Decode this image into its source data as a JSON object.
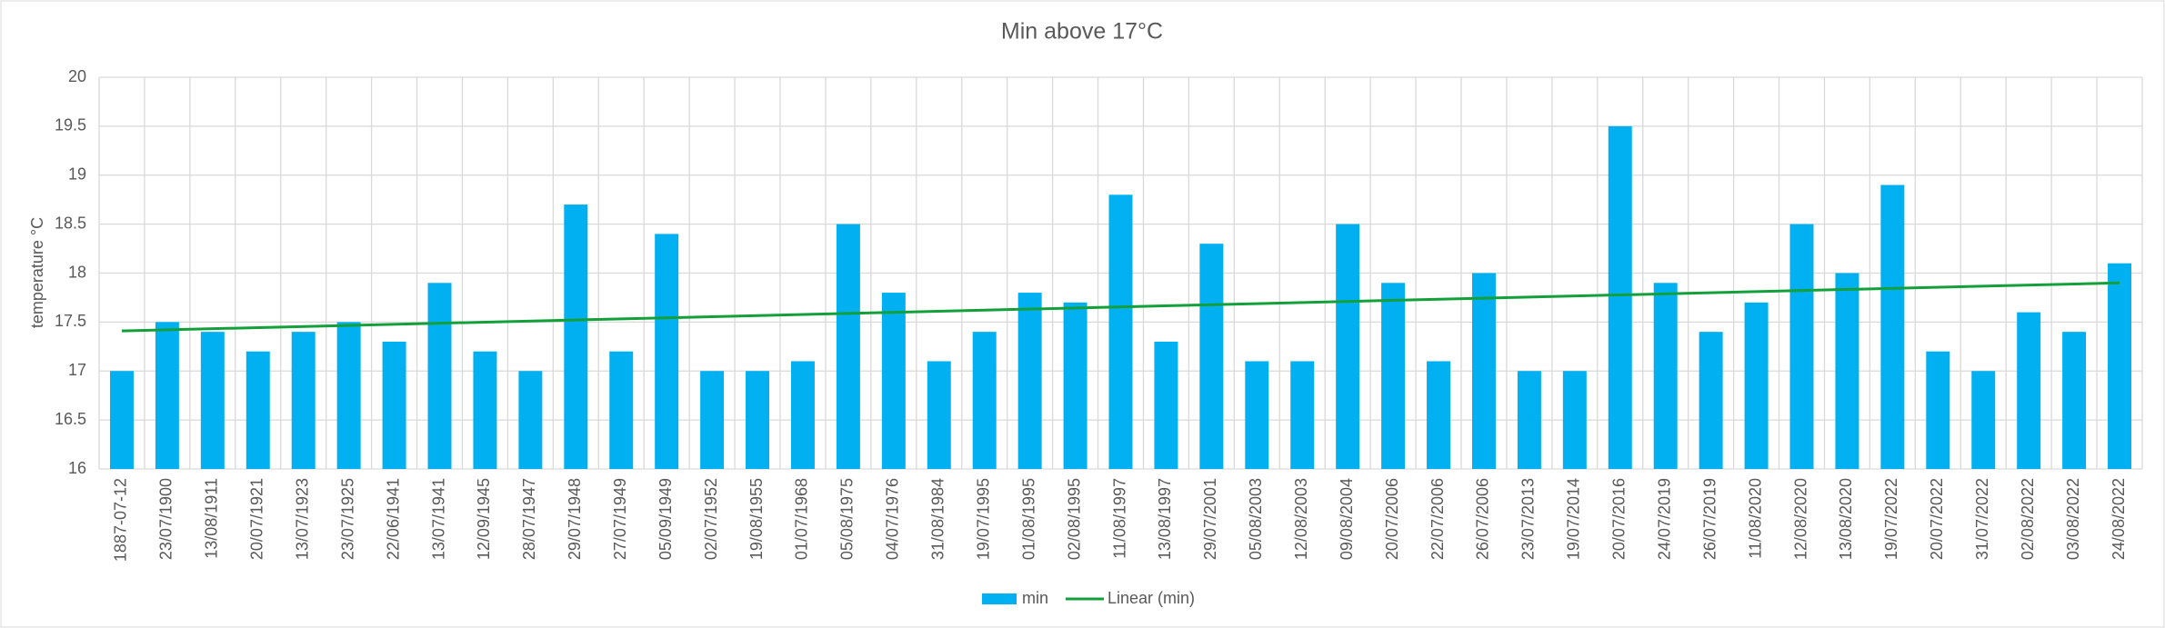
{
  "chart_data": {
    "type": "bar",
    "title": "Min above 17°C",
    "y_label": "temperature °C",
    "categories": [
      "1887-07-12",
      "23/07/1900",
      "13/08/1911",
      "20/07/1921",
      "13/07/1923",
      "23/07/1925",
      "22/06/1941",
      "13/07/1941",
      "12/09/1945",
      "28/07/1947",
      "29/07/1948",
      "27/07/1949",
      "05/09/1949",
      "02/07/1952",
      "19/08/1955",
      "01/07/1968",
      "05/08/1975",
      "04/07/1976",
      "31/08/1984",
      "19/07/1995",
      "01/08/1995",
      "02/08/1995",
      "11/08/1997",
      "13/08/1997",
      "29/07/2001",
      "05/08/2003",
      "12/08/2003",
      "09/08/2004",
      "20/07/2006",
      "22/07/2006",
      "26/07/2006",
      "23/07/2013",
      "19/07/2014",
      "20/07/2016",
      "24/07/2019",
      "26/07/2019",
      "11/08/2020",
      "12/08/2020",
      "13/08/2020",
      "19/07/2022",
      "20/07/2022",
      "31/07/2022",
      "02/08/2022",
      "03/08/2022",
      "24/08/2022"
    ],
    "series": [
      {
        "name": "min",
        "color": "#00b0f0",
        "values": [
          17.0,
          17.5,
          17.4,
          17.2,
          17.4,
          17.5,
          17.3,
          17.9,
          17.2,
          17.0,
          18.7,
          17.2,
          18.4,
          17.0,
          17.0,
          17.1,
          18.5,
          17.8,
          17.1,
          17.4,
          17.8,
          17.7,
          18.8,
          17.3,
          18.3,
          17.1,
          17.1,
          18.5,
          17.9,
          17.1,
          18.0,
          17.0,
          17.0,
          19.5,
          17.9,
          17.4,
          17.7,
          18.5,
          18.0,
          18.9,
          17.2,
          17.0,
          17.6,
          17.4,
          18.1
        ]
      }
    ],
    "trendline": {
      "name": "Linear (min)",
      "color": "#13a03a",
      "values": [
        17.41,
        17.9
      ]
    },
    "ylim": [
      16,
      20
    ],
    "yticks": [
      16,
      16.5,
      17,
      17.5,
      18,
      18.5,
      19,
      19.5,
      20
    ],
    "grid": true,
    "legend": "bottom"
  }
}
